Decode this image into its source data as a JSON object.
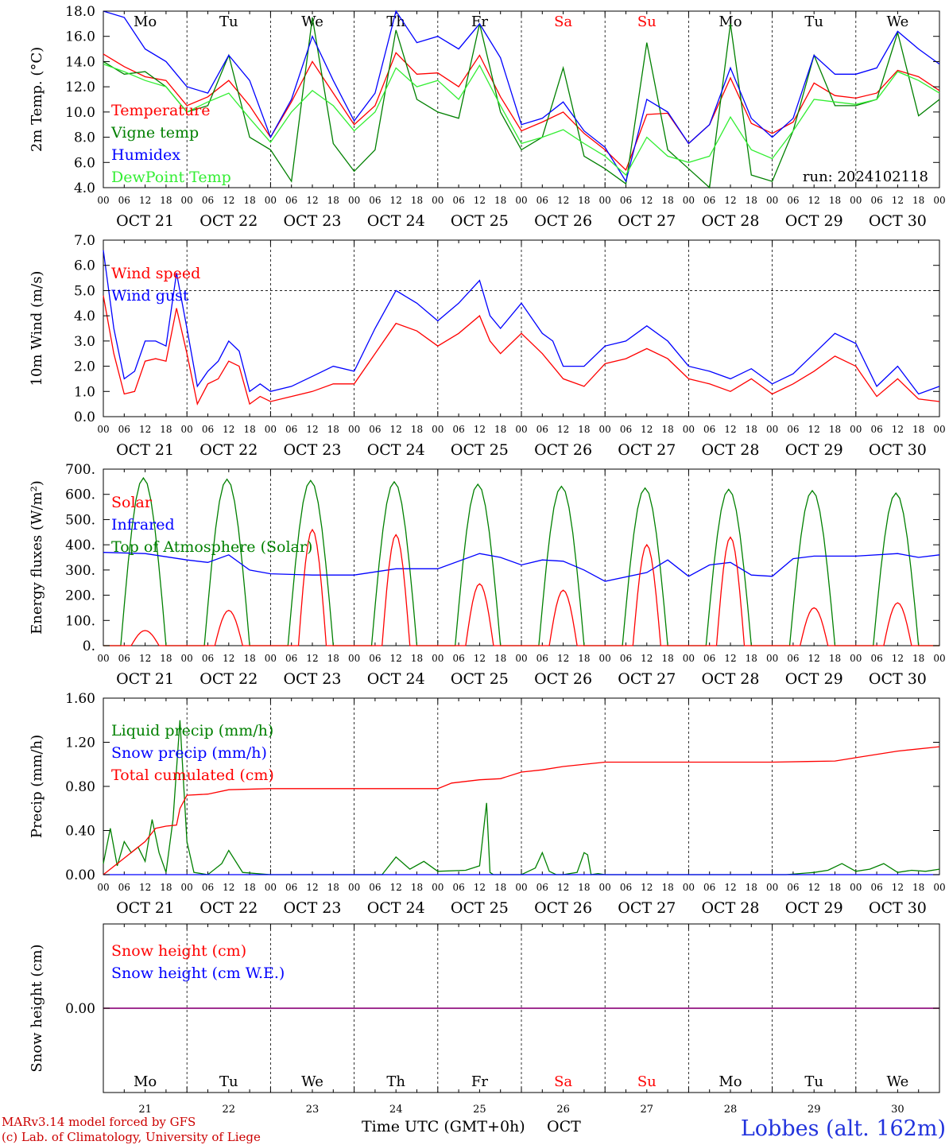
{
  "chart_data": {
    "type": "line",
    "x_axis_days": [
      "OCT 21",
      "OCT 22",
      "OCT 23",
      "OCT 24",
      "OCT 25",
      "OCT 26",
      "OCT 27",
      "OCT 28",
      "OCT 29",
      "OCT 30"
    ],
    "x_hour_ticks": [
      "00",
      "06",
      "12",
      "18"
    ],
    "weekdays": [
      "Mo",
      "Tu",
      "We",
      "Th",
      "Fr",
      "Sa",
      "Su",
      "Mo",
      "Tu",
      "We"
    ],
    "weekday_colors": [
      "#000000",
      "#000000",
      "#000000",
      "#000000",
      "#000000",
      "#ff0000",
      "#ff0000",
      "#000000",
      "#000000",
      "#000000"
    ],
    "bottom_day_numbers": [
      "21",
      "22",
      "23",
      "24",
      "25",
      "26",
      "27",
      "28",
      "29",
      "30"
    ],
    "bottom_axis_label": "Time UTC (GMT+0h)",
    "bottom_axis_month": "OCT",
    "credit_line1": "MARv3.14 model forced by GFS",
    "credit_line2": "(c) Lab. of Climatology, University of Liege",
    "station": "Lobbes (alt. 162m)",
    "panels": [
      {
        "ylabel": "2m Temp. (°C)",
        "ylim": [
          4,
          18
        ],
        "yticks": [
          "4.0",
          "6.0",
          "8.0",
          "10.0",
          "12.0",
          "14.0",
          "16.0",
          "18.0"
        ],
        "annotation": "run: 2024102118",
        "series": [
          {
            "name": "Temperature",
            "color": "#ff0000",
            "x_hours": [
              0,
              6,
              12,
              18,
              24,
              30,
              36,
              42,
              48,
              54,
              60,
              66,
              72,
              78,
              84,
              90,
              96,
              102,
              108,
              114,
              120,
              126,
              132,
              138,
              144,
              150,
              156,
              162,
              168,
              174,
              180,
              186,
              192,
              198,
              204,
              210,
              216,
              222,
              228,
              234,
              240
            ],
            "values": [
              14.6,
              13.6,
              12.8,
              12.5,
              10.5,
              11.2,
              12.5,
              10.5,
              8.0,
              10.8,
              14.0,
              11.5,
              9.0,
              10.5,
              14.7,
              13.0,
              13.1,
              12.0,
              14.5,
              11.2,
              8.5,
              9.2,
              10.0,
              8.3,
              7.0,
              5.4,
              9.8,
              9.9,
              7.5,
              9.0,
              12.7,
              9.1,
              8.3,
              9.2,
              12.3,
              11.3,
              11.1,
              11.5,
              13.3,
              12.8,
              11.7
            ]
          },
          {
            "name": "Vigne temp",
            "color": "#008000",
            "x_hours": [
              0,
              6,
              12,
              18,
              24,
              30,
              36,
              42,
              48,
              54,
              60,
              66,
              72,
              78,
              84,
              90,
              96,
              102,
              108,
              114,
              120,
              126,
              132,
              138,
              144,
              150,
              156,
              162,
              168,
              174,
              180,
              186,
              192,
              198,
              204,
              210,
              216,
              222,
              228,
              234,
              240
            ],
            "values": [
              14.0,
              13.0,
              13.2,
              12.0,
              10.0,
              10.5,
              14.5,
              8.0,
              7.0,
              4.5,
              17.5,
              7.5,
              5.3,
              7.0,
              16.5,
              11.0,
              10.0,
              9.5,
              17.0,
              10.0,
              7.0,
              8.0,
              13.5,
              6.5,
              5.5,
              4.3,
              15.5,
              7.0,
              5.5,
              4.0,
              17.0,
              5.0,
              4.5,
              8.5,
              14.5,
              10.5,
              10.5,
              11.0,
              16.3,
              9.7,
              11.0
            ]
          },
          {
            "name": "Humidex",
            "color": "#0000ff",
            "x_hours": [
              0,
              6,
              12,
              18,
              24,
              30,
              36,
              42,
              48,
              54,
              60,
              66,
              72,
              78,
              84,
              90,
              96,
              102,
              108,
              114,
              120,
              126,
              132,
              138,
              144,
              150,
              156,
              162,
              168,
              174,
              180,
              186,
              192,
              198,
              204,
              210,
              216,
              222,
              228,
              234,
              240
            ],
            "values": [
              18.0,
              17.5,
              15.0,
              14.0,
              12.0,
              11.5,
              14.5,
              12.5,
              8.0,
              11.0,
              16.0,
              12.5,
              9.3,
              11.5,
              18.0,
              15.5,
              16.0,
              15.0,
              17.0,
              14.3,
              9.0,
              9.5,
              10.8,
              8.5,
              7.2,
              4.5,
              11.0,
              10.0,
              7.5,
              9.0,
              13.5,
              9.5,
              8.0,
              9.5,
              14.5,
              13.0,
              13.0,
              13.5,
              16.4,
              15.0,
              13.8
            ]
          },
          {
            "name": "DewPoint Temp",
            "color": "#33ee33",
            "x_hours": [
              0,
              6,
              12,
              18,
              24,
              30,
              36,
              42,
              48,
              54,
              60,
              66,
              72,
              78,
              84,
              90,
              96,
              102,
              108,
              114,
              120,
              126,
              132,
              138,
              144,
              150,
              156,
              162,
              168,
              174,
              180,
              186,
              192,
              198,
              204,
              210,
              216,
              222,
              228,
              234,
              240
            ],
            "values": [
              13.8,
              13.2,
              12.5,
              12.0,
              10.0,
              10.8,
              11.5,
              9.5,
              7.6,
              10.0,
              11.7,
              10.5,
              8.5,
              10.0,
              13.5,
              12.0,
              12.5,
              11.0,
              13.7,
              10.5,
              7.5,
              8.0,
              8.6,
              7.5,
              6.5,
              5.0,
              8.0,
              6.5,
              6.0,
              6.5,
              9.6,
              7.0,
              6.3,
              8.5,
              11.0,
              10.8,
              10.6,
              11.0,
              13.2,
              12.5,
              11.5
            ]
          }
        ]
      },
      {
        "ylabel": "10m Wind (m/s)",
        "ylim": [
          0,
          7
        ],
        "yticks": [
          "0.0",
          "1.0",
          "2.0",
          "3.0",
          "4.0",
          "5.0",
          "6.0",
          "7.0"
        ],
        "ref_line": 5.0,
        "series": [
          {
            "name": "Wind speed",
            "color": "#ff0000",
            "x_hours": [
              0,
              3,
              6,
              9,
              12,
              15,
              18,
              21,
              24,
              27,
              30,
              33,
              36,
              39,
              42,
              45,
              48,
              54,
              60,
              66,
              72,
              78,
              84,
              90,
              96,
              102,
              108,
              111,
              114,
              120,
              126,
              129,
              132,
              138,
              144,
              150,
              156,
              162,
              168,
              174,
              180,
              186,
              192,
              198,
              204,
              210,
              216,
              222,
              228,
              234,
              240
            ],
            "values": [
              4.8,
              2.5,
              0.9,
              1.0,
              2.2,
              2.3,
              2.2,
              4.3,
              2.5,
              0.5,
              1.3,
              1.5,
              2.2,
              2.0,
              0.5,
              0.8,
              0.6,
              0.8,
              1.0,
              1.3,
              1.3,
              2.5,
              3.7,
              3.4,
              2.8,
              3.3,
              4.0,
              3.0,
              2.5,
              3.3,
              2.5,
              2.0,
              1.5,
              1.2,
              2.1,
              2.3,
              2.7,
              2.3,
              1.5,
              1.3,
              1.0,
              1.5,
              0.9,
              1.3,
              1.8,
              2.4,
              2.0,
              0.8,
              1.5,
              0.7,
              0.6
            ]
          },
          {
            "name": "Wind gust",
            "color": "#0000ff",
            "x_hours": [
              0,
              3,
              6,
              9,
              12,
              15,
              18,
              21,
              24,
              27,
              30,
              33,
              36,
              39,
              42,
              45,
              48,
              54,
              60,
              66,
              72,
              78,
              84,
              90,
              96,
              102,
              108,
              111,
              114,
              120,
              126,
              129,
              132,
              138,
              144,
              150,
              156,
              162,
              168,
              174,
              180,
              186,
              192,
              198,
              204,
              210,
              216,
              222,
              228,
              234,
              240
            ],
            "values": [
              6.6,
              3.5,
              1.5,
              1.8,
              3.0,
              3.0,
              2.8,
              5.7,
              3.5,
              1.2,
              1.8,
              2.2,
              3.0,
              2.6,
              1.0,
              1.3,
              1.0,
              1.2,
              1.6,
              2.0,
              1.8,
              3.5,
              5.0,
              4.5,
              3.8,
              4.5,
              5.4,
              4.0,
              3.5,
              4.5,
              3.3,
              3.0,
              2.0,
              2.0,
              2.8,
              3.0,
              3.6,
              3.0,
              2.0,
              1.8,
              1.5,
              1.9,
              1.3,
              1.7,
              2.5,
              3.3,
              2.9,
              1.2,
              2.0,
              0.9,
              1.2
            ]
          }
        ]
      },
      {
        "ylabel": "Energy fluxes (W/m²)",
        "ylim": [
          0,
          700
        ],
        "yticks": [
          "0.",
          "100.",
          "200.",
          "300.",
          "400.",
          "500.",
          "600.",
          "700."
        ],
        "series": [
          {
            "name": "Solar",
            "color": "#ff0000",
            "peaks": [
              60,
              140,
              460,
              440,
              245,
              220,
              400,
              430,
              150,
              170
            ]
          },
          {
            "name": "Infrared",
            "color": "#0000ff",
            "x_hours": [
              0,
              12,
              24,
              30,
              36,
              42,
              48,
              60,
              72,
              84,
              96,
              108,
              114,
              120,
              126,
              132,
              138,
              144,
              156,
              162,
              168,
              174,
              180,
              186,
              192,
              198,
              204,
              216,
              228,
              234,
              240
            ],
            "values": [
              370,
              365,
              340,
              330,
              360,
              300,
              285,
              280,
              280,
              305,
              305,
              365,
              350,
              320,
              340,
              335,
              300,
              255,
              290,
              340,
              275,
              320,
              330,
              280,
              275,
              345,
              355,
              355,
              365,
              350,
              360
            ]
          },
          {
            "name": "Top of Atmosphere (Solar)",
            "color": "#008000",
            "peaks": [
              665,
              660,
              655,
              650,
              640,
              632,
              625,
              620,
              615,
              605
            ]
          }
        ]
      },
      {
        "ylabel": "Precip (mm/h)",
        "ylim": [
          0,
          1.6
        ],
        "yticks": [
          "0.00",
          "0.40",
          "0.80",
          "1.20",
          "1.60"
        ],
        "series": [
          {
            "name": "Liquid precip (mm/h)",
            "color": "#008000",
            "x_hours": [
              0,
              2,
              4,
              6,
              8,
              10,
              12,
              14,
              16,
              18,
              20,
              22,
              24,
              26,
              30,
              34,
              36,
              40,
              44,
              48,
              80,
              84,
              88,
              92,
              96,
              104,
              108,
              110,
              111,
              112,
              114,
              120,
              124,
              126,
              128,
              130,
              132,
              136,
              138,
              139,
              140,
              142,
              144,
              196,
              204,
              208,
              212,
              216,
              220,
              224,
              228,
              232,
              236,
              240
            ],
            "values": [
              0.1,
              0.42,
              0.08,
              0.3,
              0.2,
              0.25,
              0.12,
              0.5,
              0.2,
              0.02,
              0.5,
              1.4,
              0.3,
              0.02,
              0.0,
              0.1,
              0.22,
              0.02,
              0.01,
              0.0,
              0.0,
              0.16,
              0.05,
              0.12,
              0.03,
              0.04,
              0.08,
              0.65,
              0.02,
              0.0,
              0.0,
              0.0,
              0.06,
              0.2,
              0.03,
              0.0,
              0.0,
              0.02,
              0.2,
              0.18,
              0.0,
              0.01,
              0.0,
              0.0,
              0.02,
              0.04,
              0.1,
              0.03,
              0.05,
              0.1,
              0.02,
              0.04,
              0.03,
              0.05
            ]
          },
          {
            "name": "Snow precip (mm/h)",
            "color": "#0000ff",
            "x_hours": [
              0,
              240
            ],
            "values": [
              0.0,
              0.0
            ]
          },
          {
            "name": "Total cumulated (cm)",
            "color": "#ff0000",
            "x_hours": [
              0,
              6,
              12,
              15,
              18,
              21,
              22,
              24,
              30,
              36,
              48,
              96,
              100,
              108,
              114,
              120,
              126,
              132,
              144,
              192,
              210,
              216,
              228,
              240
            ],
            "values": [
              0.0,
              0.15,
              0.3,
              0.42,
              0.44,
              0.45,
              0.6,
              0.72,
              0.73,
              0.77,
              0.78,
              0.78,
              0.83,
              0.86,
              0.87,
              0.93,
              0.95,
              0.98,
              1.02,
              1.02,
              1.03,
              1.06,
              1.12,
              1.16
            ]
          }
        ]
      },
      {
        "ylabel": "Snow height (cm)",
        "ylim": [
          -1,
          1
        ],
        "yticks": [
          "0.00"
        ],
        "series": [
          {
            "name": "Snow height (cm)",
            "color": "#ff0000",
            "x_hours": [
              0,
              240
            ],
            "values": [
              0.0,
              0.0
            ]
          },
          {
            "name": "Snow height (cm W.E.)",
            "color": "#0000ff",
            "x_hours": [
              0,
              240
            ],
            "values": [
              0.0,
              0.0
            ]
          }
        ]
      }
    ]
  }
}
